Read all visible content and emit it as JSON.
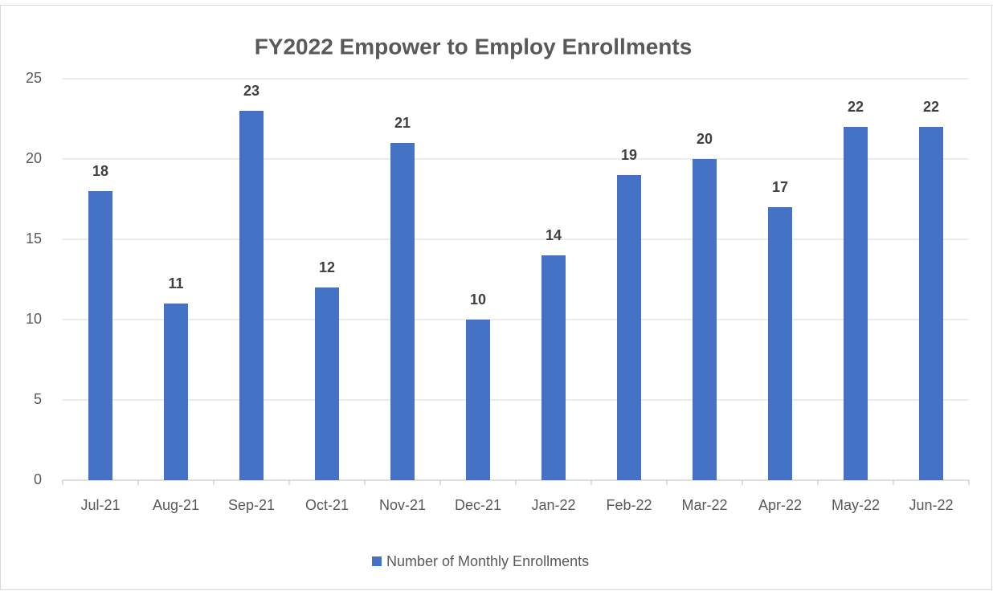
{
  "chart_data": {
    "type": "bar",
    "title": "FY2022 Empower to Employ Enrollments",
    "categories": [
      "Jul-21",
      "Aug-21",
      "Sep-21",
      "Oct-21",
      "Nov-21",
      "Dec-21",
      "Jan-22",
      "Feb-22",
      "Mar-22",
      "Apr-22",
      "May-22",
      "Jun-22"
    ],
    "series": [
      {
        "name": "Number of Monthly Enrollments",
        "color": "#4472c4",
        "values": [
          18,
          11,
          23,
          12,
          21,
          10,
          14,
          19,
          20,
          17,
          22,
          22
        ]
      }
    ],
    "ylim": [
      0,
      25
    ],
    "yticks": [
      0,
      5,
      10,
      15,
      20,
      25
    ],
    "grid": true,
    "legend": "bottom",
    "data_labels": true
  }
}
